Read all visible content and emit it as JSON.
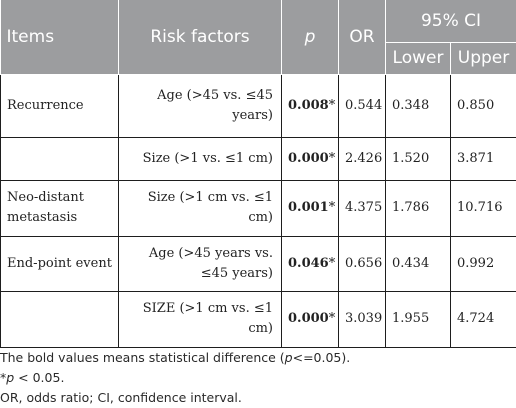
{
  "table": {
    "headers": {
      "items": "Items",
      "risk_factors": "Risk factors",
      "p": "p",
      "or": "OR",
      "ci": "95% CI",
      "lower": "Lower",
      "upper": "Upper"
    },
    "rows": [
      {
        "item": "Recurrence",
        "factor": "Age (>45 vs. ≤45 years)",
        "p": "0.008",
        "star": "*",
        "or": "0.544",
        "lower": "0.348",
        "upper": "0.850"
      },
      {
        "item": "",
        "factor": "Size (>1 vs. ≤1 cm)",
        "p": "0.000",
        "star": "*",
        "or": "2.426",
        "lower": "1.520",
        "upper": "3.871"
      },
      {
        "item": "Neo-distant metastasis",
        "factor": "Size (>1 cm vs. ≤1 cm)",
        "p": "0.001",
        "star": "*",
        "or": "4.375",
        "lower": "1.786",
        "upper": "10.716"
      },
      {
        "item": "End-point event",
        "factor": "Age (>45 years vs. ≤45 years)",
        "p": "0.046",
        "star": "*",
        "or": "0.656",
        "lower": "0.434",
        "upper": "0.992"
      },
      {
        "item": "",
        "factor": "SIZE (>1 cm vs. ≤1 cm)",
        "p": "0.000",
        "star": "*",
        "or": "3.039",
        "lower": "1.955",
        "upper": "4.724"
      }
    ]
  },
  "notes": {
    "bold_pre": "The bold values means statistical difference (",
    "bold_p": "p",
    "bold_post": "<=0.05).",
    "star_pre": "*",
    "star_p": "p",
    "star_post": " < 0.05.",
    "abbrev": "OR, odds ratio; CI, confidence interval."
  }
}
